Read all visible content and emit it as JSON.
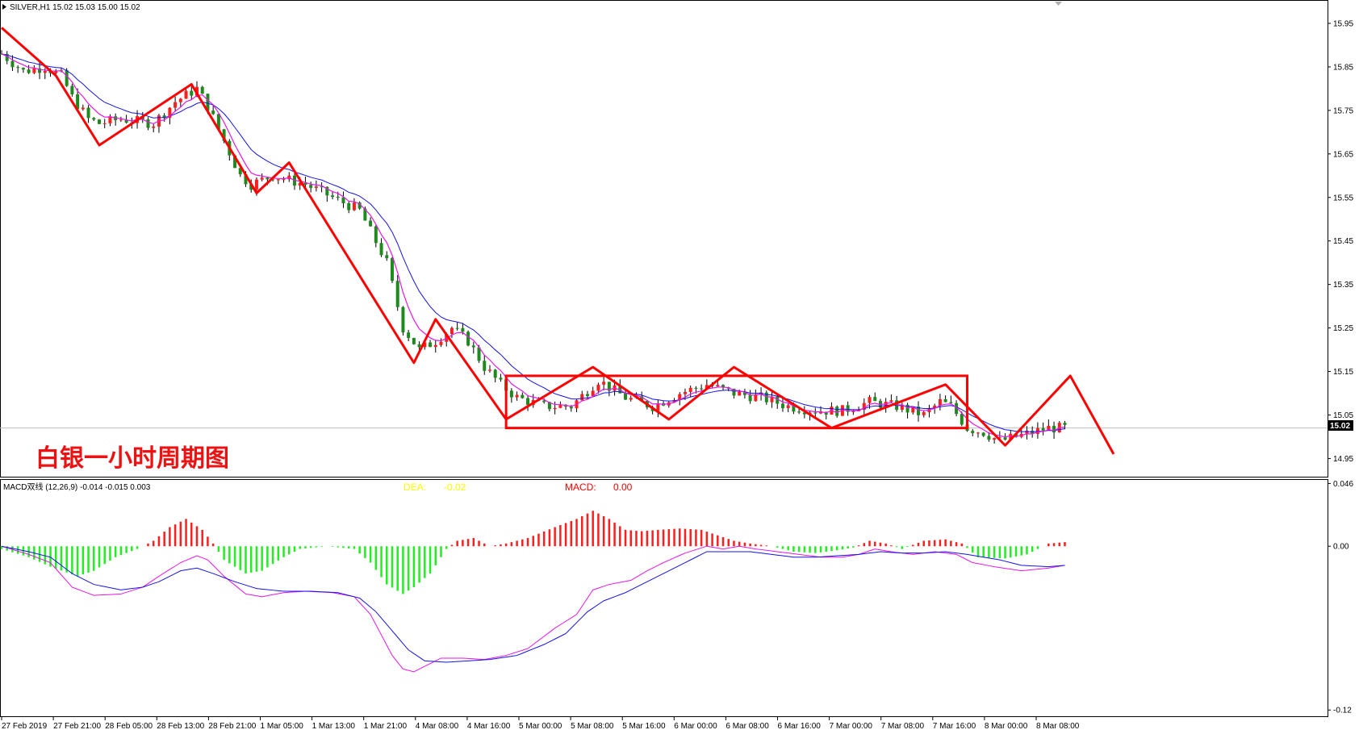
{
  "window": {
    "symbol_header": "SILVER,H1  15.02 15.03 15.00 15.02",
    "chart_caption": "白银一小时周期图"
  },
  "colors": {
    "bull": "#ff1e1e",
    "bear": "#1e8a1e",
    "ma_fast": "#e617e6",
    "ma_slow": "#1414e6",
    "annotation": "#ff0000",
    "hist_pos": "#ff1e1e",
    "hist_neg": "#22ee22",
    "macd_line": "#e617e6",
    "signal_line": "#1414e6"
  },
  "chart_data": [
    {
      "type": "candlestick",
      "title": "SILVER,H1",
      "current_price": "15.02",
      "ylim": [
        14.91,
        16.0
      ],
      "price_axis_ticks": [
        "15.95",
        "15.85",
        "15.75",
        "15.65",
        "15.55",
        "15.45",
        "15.35",
        "15.25",
        "15.15",
        "15.05",
        "14.95"
      ],
      "price_axis_values": [
        15.95,
        15.85,
        15.75,
        15.65,
        15.55,
        15.45,
        15.35,
        15.25,
        15.15,
        15.05,
        14.95
      ],
      "time_axis_labels": [
        "27 Feb 2019",
        "27 Feb 21:00",
        "28 Feb 05:00",
        "28 Feb 13:00",
        "28 Feb 21:00",
        "1 Mar 05:00",
        "1 Mar 13:00",
        "1 Mar 21:00",
        "4 Mar 08:00",
        "4 Mar 16:00",
        "5 Mar 00:00",
        "5 Mar 08:00",
        "5 Mar 16:00",
        "6 Mar 00:00",
        "6 Mar 08:00",
        "6 Mar 16:00",
        "7 Mar 00:00",
        "7 Mar 08:00",
        "7 Mar 16:00",
        "8 Mar 00:00",
        "8 Mar 08:00"
      ],
      "price_path": [
        [
          0,
          15.88
        ],
        [
          4,
          15.84
        ],
        [
          8,
          15.85
        ],
        [
          11,
          15.83
        ],
        [
          13,
          15.78
        ],
        [
          16,
          15.73
        ],
        [
          18,
          15.72
        ],
        [
          22,
          15.73
        ],
        [
          28,
          15.72
        ],
        [
          32,
          15.77
        ],
        [
          36,
          15.8
        ],
        [
          38,
          15.76
        ],
        [
          41,
          15.68
        ],
        [
          44,
          15.6
        ],
        [
          46,
          15.58
        ],
        [
          50,
          15.6
        ],
        [
          56,
          15.58
        ],
        [
          61,
          15.55
        ],
        [
          66,
          15.52
        ],
        [
          71,
          15.4
        ],
        [
          74,
          15.25
        ],
        [
          77,
          15.2
        ],
        [
          80,
          15.22
        ],
        [
          83,
          15.25
        ],
        [
          86,
          15.22
        ],
        [
          89,
          15.16
        ],
        [
          92,
          15.12
        ],
        [
          95,
          15.09
        ],
        [
          100,
          15.07
        ],
        [
          105,
          15.07
        ],
        [
          110,
          15.13
        ],
        [
          115,
          15.09
        ],
        [
          120,
          15.07
        ],
        [
          125,
          15.1
        ],
        [
          130,
          15.12
        ],
        [
          135,
          15.1
        ],
        [
          140,
          15.09
        ],
        [
          145,
          15.07
        ],
        [
          150,
          15.06
        ],
        [
          155,
          15.06
        ],
        [
          160,
          15.08
        ],
        [
          165,
          15.07
        ],
        [
          170,
          15.05
        ],
        [
          173,
          15.08
        ],
        [
          175,
          15.07
        ],
        [
          178,
          15.02
        ],
        [
          181,
          15.01
        ],
        [
          184,
          14.99
        ],
        [
          187,
          15.0
        ],
        [
          190,
          15.01
        ],
        [
          193,
          15.02
        ]
      ],
      "trend_path": [
        [
          0,
          15.94
        ],
        [
          10,
          15.83
        ],
        [
          18,
          15.67
        ],
        [
          35,
          15.81
        ],
        [
          47,
          15.56
        ],
        [
          53,
          15.63
        ],
        [
          76,
          15.17
        ],
        [
          80,
          15.27
        ],
        [
          93,
          15.04
        ],
        [
          109,
          15.16
        ],
        [
          123,
          15.04
        ],
        [
          135,
          15.16
        ],
        [
          153,
          15.02
        ],
        [
          174,
          15.12
        ],
        [
          185,
          14.98
        ],
        [
          197,
          15.14
        ],
        [
          205,
          14.96
        ]
      ],
      "range_box": {
        "x0": 93,
        "x1": 178,
        "y_low": 15.02,
        "y_high": 15.14
      },
      "xrange": [
        0,
        248
      ]
    },
    {
      "type": "bar",
      "title": "MACD双线 (12,26,9) -0.014 -0.015 0.003",
      "dea_label": "DEA:",
      "dea_value": "-0.02",
      "macd_label": "MACD:",
      "macd_value": "0.00",
      "ylim": [
        -0.124,
        0.048
      ],
      "ticks": [
        "0.046",
        "0.00",
        "-0.12"
      ],
      "tick_values": [
        0.046,
        0.0,
        -0.12
      ],
      "histogram_path": [
        [
          0,
          -0.002
        ],
        [
          5,
          -0.008
        ],
        [
          9,
          -0.015
        ],
        [
          14,
          -0.022
        ],
        [
          17,
          -0.018
        ],
        [
          21,
          -0.008
        ],
        [
          25,
          -0.002
        ],
        [
          28,
          0.004
        ],
        [
          31,
          0.014
        ],
        [
          34,
          0.02
        ],
        [
          37,
          0.012
        ],
        [
          39,
          0.002
        ],
        [
          41,
          -0.01
        ],
        [
          45,
          -0.02
        ],
        [
          48,
          -0.018
        ],
        [
          52,
          -0.008
        ],
        [
          55,
          -0.002
        ],
        [
          60,
          0.0
        ],
        [
          65,
          -0.002
        ],
        [
          68,
          -0.012
        ],
        [
          71,
          -0.028
        ],
        [
          74,
          -0.035
        ],
        [
          76,
          -0.03
        ],
        [
          79,
          -0.02
        ],
        [
          82,
          -0.002
        ],
        [
          84,
          0.004
        ],
        [
          87,
          0.006
        ],
        [
          90,
          0.0
        ],
        [
          93,
          0.002
        ],
        [
          97,
          0.006
        ],
        [
          102,
          0.014
        ],
        [
          106,
          0.02
        ],
        [
          109,
          0.026
        ],
        [
          112,
          0.02
        ],
        [
          115,
          0.012
        ],
        [
          118,
          0.011
        ],
        [
          121,
          0.012
        ],
        [
          125,
          0.013
        ],
        [
          129,
          0.012
        ],
        [
          132,
          0.008
        ],
        [
          135,
          0.004
        ],
        [
          138,
          0.002
        ],
        [
          142,
          0.0
        ],
        [
          146,
          -0.004
        ],
        [
          150,
          -0.005
        ],
        [
          154,
          -0.003
        ],
        [
          157,
          -0.001
        ],
        [
          160,
          0.004
        ],
        [
          163,
          0.002
        ],
        [
          166,
          -0.002
        ],
        [
          170,
          0.004
        ],
        [
          174,
          0.005
        ],
        [
          177,
          0.002
        ],
        [
          180,
          -0.008
        ],
        [
          185,
          -0.009
        ],
        [
          189,
          -0.006
        ],
        [
          191,
          -0.002
        ],
        [
          193,
          0.002
        ],
        [
          196,
          0.003
        ]
      ],
      "macd_path": [
        [
          0,
          0.0
        ],
        [
          5,
          -0.006
        ],
        [
          9,
          -0.012
        ],
        [
          13,
          -0.03
        ],
        [
          17,
          -0.036
        ],
        [
          22,
          -0.035
        ],
        [
          26,
          -0.03
        ],
        [
          29,
          -0.022
        ],
        [
          33,
          -0.012
        ],
        [
          36,
          -0.007
        ],
        [
          38,
          -0.01
        ],
        [
          41,
          -0.022
        ],
        [
          45,
          -0.035
        ],
        [
          48,
          -0.037
        ],
        [
          52,
          -0.034
        ],
        [
          56,
          -0.033
        ],
        [
          61,
          -0.034
        ],
        [
          65,
          -0.037
        ],
        [
          68,
          -0.05
        ],
        [
          70,
          -0.065
        ],
        [
          72,
          -0.08
        ],
        [
          74,
          -0.09
        ],
        [
          76,
          -0.092
        ],
        [
          78,
          -0.088
        ],
        [
          81,
          -0.082
        ],
        [
          85,
          -0.082
        ],
        [
          89,
          -0.083
        ],
        [
          93,
          -0.08
        ],
        [
          97,
          -0.075
        ],
        [
          102,
          -0.06
        ],
        [
          106,
          -0.05
        ],
        [
          109,
          -0.032
        ],
        [
          112,
          -0.028
        ],
        [
          116,
          -0.025
        ],
        [
          119,
          -0.018
        ],
        [
          122,
          -0.012
        ],
        [
          126,
          -0.005
        ],
        [
          130,
          0.0
        ],
        [
          133,
          -0.002
        ],
        [
          136,
          0.0
        ],
        [
          139,
          -0.002
        ],
        [
          143,
          -0.004
        ],
        [
          147,
          -0.006
        ],
        [
          151,
          -0.008
        ],
        [
          155,
          -0.008
        ],
        [
          158,
          -0.006
        ],
        [
          161,
          -0.002
        ],
        [
          164,
          -0.004
        ],
        [
          168,
          -0.006
        ],
        [
          172,
          -0.004
        ],
        [
          176,
          -0.006
        ],
        [
          179,
          -0.012
        ],
        [
          183,
          -0.015
        ],
        [
          188,
          -0.018
        ],
        [
          193,
          -0.016
        ],
        [
          196,
          -0.014
        ]
      ],
      "signal_path": [
        [
          0,
          0.0
        ],
        [
          5,
          -0.004
        ],
        [
          9,
          -0.008
        ],
        [
          13,
          -0.02
        ],
        [
          17,
          -0.028
        ],
        [
          22,
          -0.032
        ],
        [
          26,
          -0.03
        ],
        [
          29,
          -0.026
        ],
        [
          33,
          -0.018
        ],
        [
          36,
          -0.016
        ],
        [
          39,
          -0.02
        ],
        [
          43,
          -0.026
        ],
        [
          47,
          -0.031
        ],
        [
          52,
          -0.033
        ],
        [
          57,
          -0.033
        ],
        [
          62,
          -0.034
        ],
        [
          66,
          -0.038
        ],
        [
          69,
          -0.048
        ],
        [
          72,
          -0.062
        ],
        [
          75,
          -0.076
        ],
        [
          78,
          -0.084
        ],
        [
          82,
          -0.085
        ],
        [
          86,
          -0.084
        ],
        [
          90,
          -0.083
        ],
        [
          95,
          -0.08
        ],
        [
          100,
          -0.072
        ],
        [
          104,
          -0.064
        ],
        [
          108,
          -0.048
        ],
        [
          111,
          -0.04
        ],
        [
          115,
          -0.034
        ],
        [
          119,
          -0.026
        ],
        [
          123,
          -0.018
        ],
        [
          127,
          -0.01
        ],
        [
          130,
          -0.004
        ],
        [
          134,
          -0.004
        ],
        [
          138,
          -0.004
        ],
        [
          142,
          -0.006
        ],
        [
          146,
          -0.008
        ],
        [
          150,
          -0.008
        ],
        [
          154,
          -0.007
        ],
        [
          158,
          -0.006
        ],
        [
          162,
          -0.004
        ],
        [
          166,
          -0.005
        ],
        [
          170,
          -0.005
        ],
        [
          174,
          -0.004
        ],
        [
          178,
          -0.006
        ],
        [
          181,
          -0.008
        ],
        [
          184,
          -0.01
        ],
        [
          188,
          -0.014
        ],
        [
          193,
          -0.015
        ],
        [
          196,
          -0.014
        ]
      ]
    }
  ]
}
